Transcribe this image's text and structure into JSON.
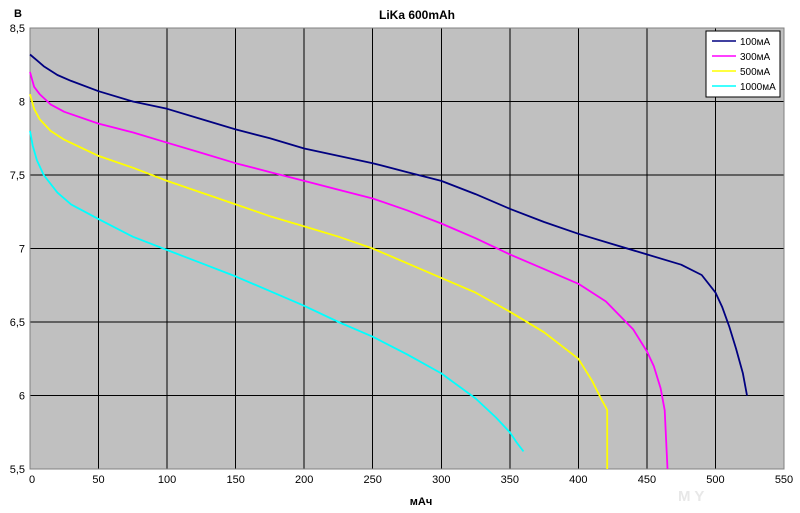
{
  "chart_data": {
    "type": "line",
    "title": "LiKa 600mAh",
    "xlabel": "мАч",
    "ylabel": "В",
    "xlim": [
      0,
      550
    ],
    "ylim": [
      5.5,
      8.5
    ],
    "x_ticks": [
      0,
      50,
      100,
      150,
      200,
      250,
      300,
      350,
      400,
      450,
      500,
      550
    ],
    "x_tick_labels": [
      "0",
      "50",
      "100",
      "150",
      "200",
      "250",
      "300",
      "350",
      "400",
      "450",
      "500",
      "550"
    ],
    "y_ticks": [
      5.5,
      6,
      6.5,
      7,
      7.5,
      8,
      8.5
    ],
    "y_tick_labels": [
      "5,5",
      "6",
      "6,5",
      "7",
      "7,5",
      "8",
      "8,5"
    ],
    "grid": true,
    "background_color": "#c0c0c0",
    "legend_position": "top-right",
    "series": [
      {
        "name": "100мА",
        "color": "#000080",
        "x": [
          0,
          5,
          10,
          20,
          30,
          50,
          75,
          100,
          125,
          150,
          175,
          200,
          225,
          250,
          275,
          300,
          325,
          350,
          375,
          400,
          425,
          450,
          475,
          490,
          500,
          505,
          510,
          515,
          520,
          523
        ],
        "y": [
          8.32,
          8.28,
          8.24,
          8.18,
          8.14,
          8.07,
          8.0,
          7.95,
          7.88,
          7.81,
          7.75,
          7.68,
          7.63,
          7.58,
          7.52,
          7.46,
          7.37,
          7.27,
          7.18,
          7.1,
          7.03,
          6.96,
          6.89,
          6.82,
          6.7,
          6.6,
          6.47,
          6.32,
          6.15,
          6.0
        ]
      },
      {
        "name": "300мА",
        "color": "#ff00ff",
        "x": [
          0,
          3,
          7,
          15,
          25,
          50,
          75,
          100,
          125,
          150,
          175,
          200,
          225,
          250,
          275,
          300,
          325,
          350,
          375,
          400,
          420,
          440,
          450,
          455,
          460,
          463,
          465
        ],
        "y": [
          8.2,
          8.1,
          8.05,
          7.98,
          7.93,
          7.85,
          7.79,
          7.72,
          7.65,
          7.58,
          7.52,
          7.46,
          7.4,
          7.34,
          7.26,
          7.17,
          7.07,
          6.96,
          6.86,
          6.76,
          6.64,
          6.45,
          6.3,
          6.2,
          6.05,
          5.9,
          5.5
        ]
      },
      {
        "name": "500мА",
        "color": "#ffff00",
        "x": [
          0,
          3,
          7,
          15,
          25,
          50,
          75,
          100,
          125,
          150,
          175,
          200,
          225,
          250,
          275,
          300,
          325,
          350,
          375,
          400,
          410,
          417,
          420,
          421,
          421
        ],
        "y": [
          8.05,
          7.95,
          7.88,
          7.8,
          7.74,
          7.63,
          7.55,
          7.46,
          7.38,
          7.3,
          7.22,
          7.15,
          7.08,
          7.0,
          6.9,
          6.8,
          6.7,
          6.57,
          6.43,
          6.25,
          6.1,
          5.97,
          5.92,
          5.9,
          5.5
        ]
      },
      {
        "name": "1000мА",
        "color": "#00ffff",
        "x": [
          0,
          2,
          5,
          10,
          20,
          30,
          50,
          75,
          100,
          125,
          150,
          175,
          200,
          225,
          250,
          275,
          300,
          325,
          340,
          350,
          355,
          360
        ],
        "y": [
          7.8,
          7.7,
          7.6,
          7.5,
          7.38,
          7.3,
          7.2,
          7.08,
          6.99,
          6.9,
          6.81,
          6.71,
          6.61,
          6.5,
          6.4,
          6.28,
          6.15,
          5.98,
          5.85,
          5.75,
          5.68,
          5.62
        ]
      }
    ],
    "watermark": "M Y"
  }
}
